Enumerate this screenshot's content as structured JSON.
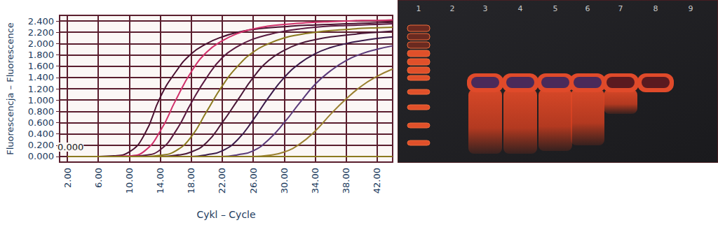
{
  "chart_data": {
    "type": "line",
    "x_label": "Cykl – Cycle",
    "y_label": "Fluorescencja – Fluorescence",
    "annotations": [
      "0.000"
    ],
    "x": [
      2,
      4,
      6,
      8,
      10,
      12,
      14,
      16,
      18,
      20,
      22,
      24,
      26,
      28,
      30,
      32,
      34,
      36,
      38,
      40,
      42,
      44
    ],
    "series": [
      {
        "color": "#4a1030",
        "values": [
          0,
          0,
          0,
          0.01,
          0.08,
          0.4,
          1.05,
          1.5,
          1.82,
          2.0,
          2.12,
          2.2,
          2.25,
          2.28,
          2.3,
          2.32,
          2.33,
          2.34,
          2.35,
          2.36,
          2.37,
          2.38
        ]
      },
      {
        "color": "#d0306a",
        "values": [
          0,
          0,
          0,
          0,
          0.01,
          0.1,
          0.45,
          1.0,
          1.5,
          1.85,
          2.05,
          2.18,
          2.26,
          2.31,
          2.34,
          2.36,
          2.38,
          2.39,
          2.4,
          2.41,
          2.41,
          2.42
        ]
      },
      {
        "color": "#5a1a40",
        "values": [
          0,
          0,
          0,
          0,
          0,
          0.02,
          0.12,
          0.45,
          0.95,
          1.4,
          1.75,
          1.95,
          2.08,
          2.16,
          2.22,
          2.26,
          2.29,
          2.31,
          2.32,
          2.33,
          2.34,
          2.35
        ]
      },
      {
        "color": "#8c7a20",
        "values": [
          0,
          0,
          0,
          0,
          0,
          0,
          0.02,
          0.1,
          0.35,
          0.8,
          1.25,
          1.6,
          1.85,
          2.0,
          2.1,
          2.16,
          2.2,
          2.23,
          2.25,
          2.27,
          2.28,
          2.29
        ]
      },
      {
        "color": "#4a1838",
        "values": [
          0,
          0,
          0,
          0,
          0,
          0,
          0,
          0.02,
          0.08,
          0.25,
          0.6,
          1.0,
          1.4,
          1.7,
          1.88,
          2.0,
          2.07,
          2.12,
          2.15,
          2.18,
          2.2,
          2.22
        ]
      },
      {
        "color": "#3a1a4a",
        "values": [
          0,
          0,
          0,
          0,
          0,
          0,
          0,
          0,
          0,
          0.03,
          0.1,
          0.3,
          0.65,
          1.05,
          1.4,
          1.65,
          1.82,
          1.93,
          2.0,
          2.05,
          2.09,
          2.12
        ]
      },
      {
        "color": "#5a3a7a",
        "values": [
          0,
          0,
          0,
          0,
          0,
          0,
          0,
          0,
          0,
          0,
          0,
          0.03,
          0.1,
          0.3,
          0.6,
          0.95,
          1.28,
          1.52,
          1.7,
          1.82,
          1.9,
          1.96
        ]
      },
      {
        "color": "#9a8030",
        "values": [
          0,
          0,
          0,
          0,
          0,
          0,
          0,
          0,
          0,
          0,
          0,
          0,
          0,
          0.02,
          0.08,
          0.22,
          0.45,
          0.75,
          1.02,
          1.25,
          1.42,
          1.55
        ]
      },
      {
        "color": "#3a1a3a",
        "values": [
          0,
          0,
          0,
          0,
          0,
          0,
          0,
          0,
          0,
          0,
          0,
          0,
          0,
          0,
          0,
          0,
          0,
          0,
          0,
          0,
          0,
          0
        ]
      },
      {
        "color": "#8c7a20",
        "values": [
          0,
          0,
          0,
          0,
          0,
          0,
          0,
          0,
          0,
          0,
          0,
          0,
          0,
          0,
          0,
          0,
          0,
          0,
          0,
          0,
          0,
          0
        ]
      }
    ],
    "xlim": [
      1,
      44
    ],
    "xticks": [
      {
        "value": 2,
        "label": "2.00"
      },
      {
        "value": 6,
        "label": "6.00"
      },
      {
        "value": 10,
        "label": "10.00"
      },
      {
        "value": 14,
        "label": "14.00"
      },
      {
        "value": 18,
        "label": "18.00"
      },
      {
        "value": 22,
        "label": "22.00"
      },
      {
        "value": 26,
        "label": "26.00"
      },
      {
        "value": 30,
        "label": "30.00"
      },
      {
        "value": 34,
        "label": "34.00"
      },
      {
        "value": 38,
        "label": "38.00"
      },
      {
        "value": 42,
        "label": "42.00"
      }
    ],
    "ylim": [
      -0.1,
      2.5
    ],
    "yticks": [
      {
        "value": 0,
        "label": "0.000"
      },
      {
        "value": 0.2,
        "label": "0.200"
      },
      {
        "value": 0.4,
        "label": "0.400"
      },
      {
        "value": 0.6,
        "label": "0.600"
      },
      {
        "value": 0.8,
        "label": "0.800"
      },
      {
        "value": 1,
        "label": "1.000"
      },
      {
        "value": 1.2,
        "label": "1.200"
      },
      {
        "value": 1.4,
        "label": "1.400"
      },
      {
        "value": 1.6,
        "label": "1.600"
      },
      {
        "value": 1.8,
        "label": "1.800"
      },
      {
        "value": 2,
        "label": "2.000"
      },
      {
        "value": 2.2,
        "label": "2.200"
      },
      {
        "value": 2.4,
        "label": "2.400"
      }
    ],
    "grid": true
  },
  "gel": {
    "lanes": [
      "1",
      "2",
      "3",
      "4",
      "5",
      "6",
      "7",
      "8",
      "9"
    ]
  }
}
